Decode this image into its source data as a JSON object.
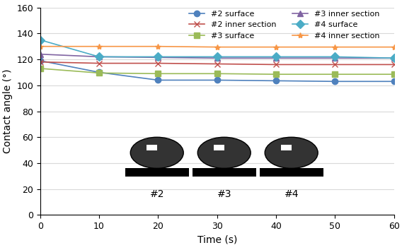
{
  "chart_data": {
    "type": "line",
    "x_label": "Time (s)",
    "y_label": "Contact angle (°)",
    "x": [
      0,
      10,
      20,
      30,
      40,
      50,
      60
    ],
    "xlim": [
      0,
      60
    ],
    "xticks": [
      0,
      10,
      20,
      30,
      40,
      50,
      60
    ],
    "ylim": [
      0,
      160
    ],
    "yticks": [
      0,
      20,
      40,
      60,
      80,
      100,
      120,
      140,
      160
    ],
    "grid": true,
    "legend": "upper right",
    "annotations": [
      "#2",
      "#3",
      "#4"
    ],
    "series": [
      {
        "name": "#2 surface",
        "color": "#4f81bd",
        "marker": "circle",
        "values": [
          119,
          110,
          104,
          104,
          103.5,
          103,
          103
        ]
      },
      {
        "name": "#2 inner section",
        "color": "#c0504d",
        "marker": "x",
        "values": [
          118,
          117,
          117,
          116.5,
          116,
          116,
          116
        ]
      },
      {
        "name": "#3 surface",
        "color": "#9bbb59",
        "marker": "square",
        "values": [
          113,
          109.5,
          109,
          109,
          108.5,
          108.5,
          108.5
        ]
      },
      {
        "name": "#3 inner section",
        "color": "#8064a2",
        "marker": "triangle",
        "values": [
          124,
          122,
          121.5,
          121,
          121,
          121,
          121
        ]
      },
      {
        "name": "#4 surface",
        "color": "#4bacc6",
        "marker": "diamond",
        "values": [
          135,
          122,
          122,
          122,
          122,
          122,
          121
        ]
      },
      {
        "name": "#4 inner section",
        "color": "#f79646",
        "marker": "star",
        "values": [
          130,
          130,
          130,
          129.5,
          129.5,
          129.5,
          129.5
        ]
      }
    ]
  }
}
